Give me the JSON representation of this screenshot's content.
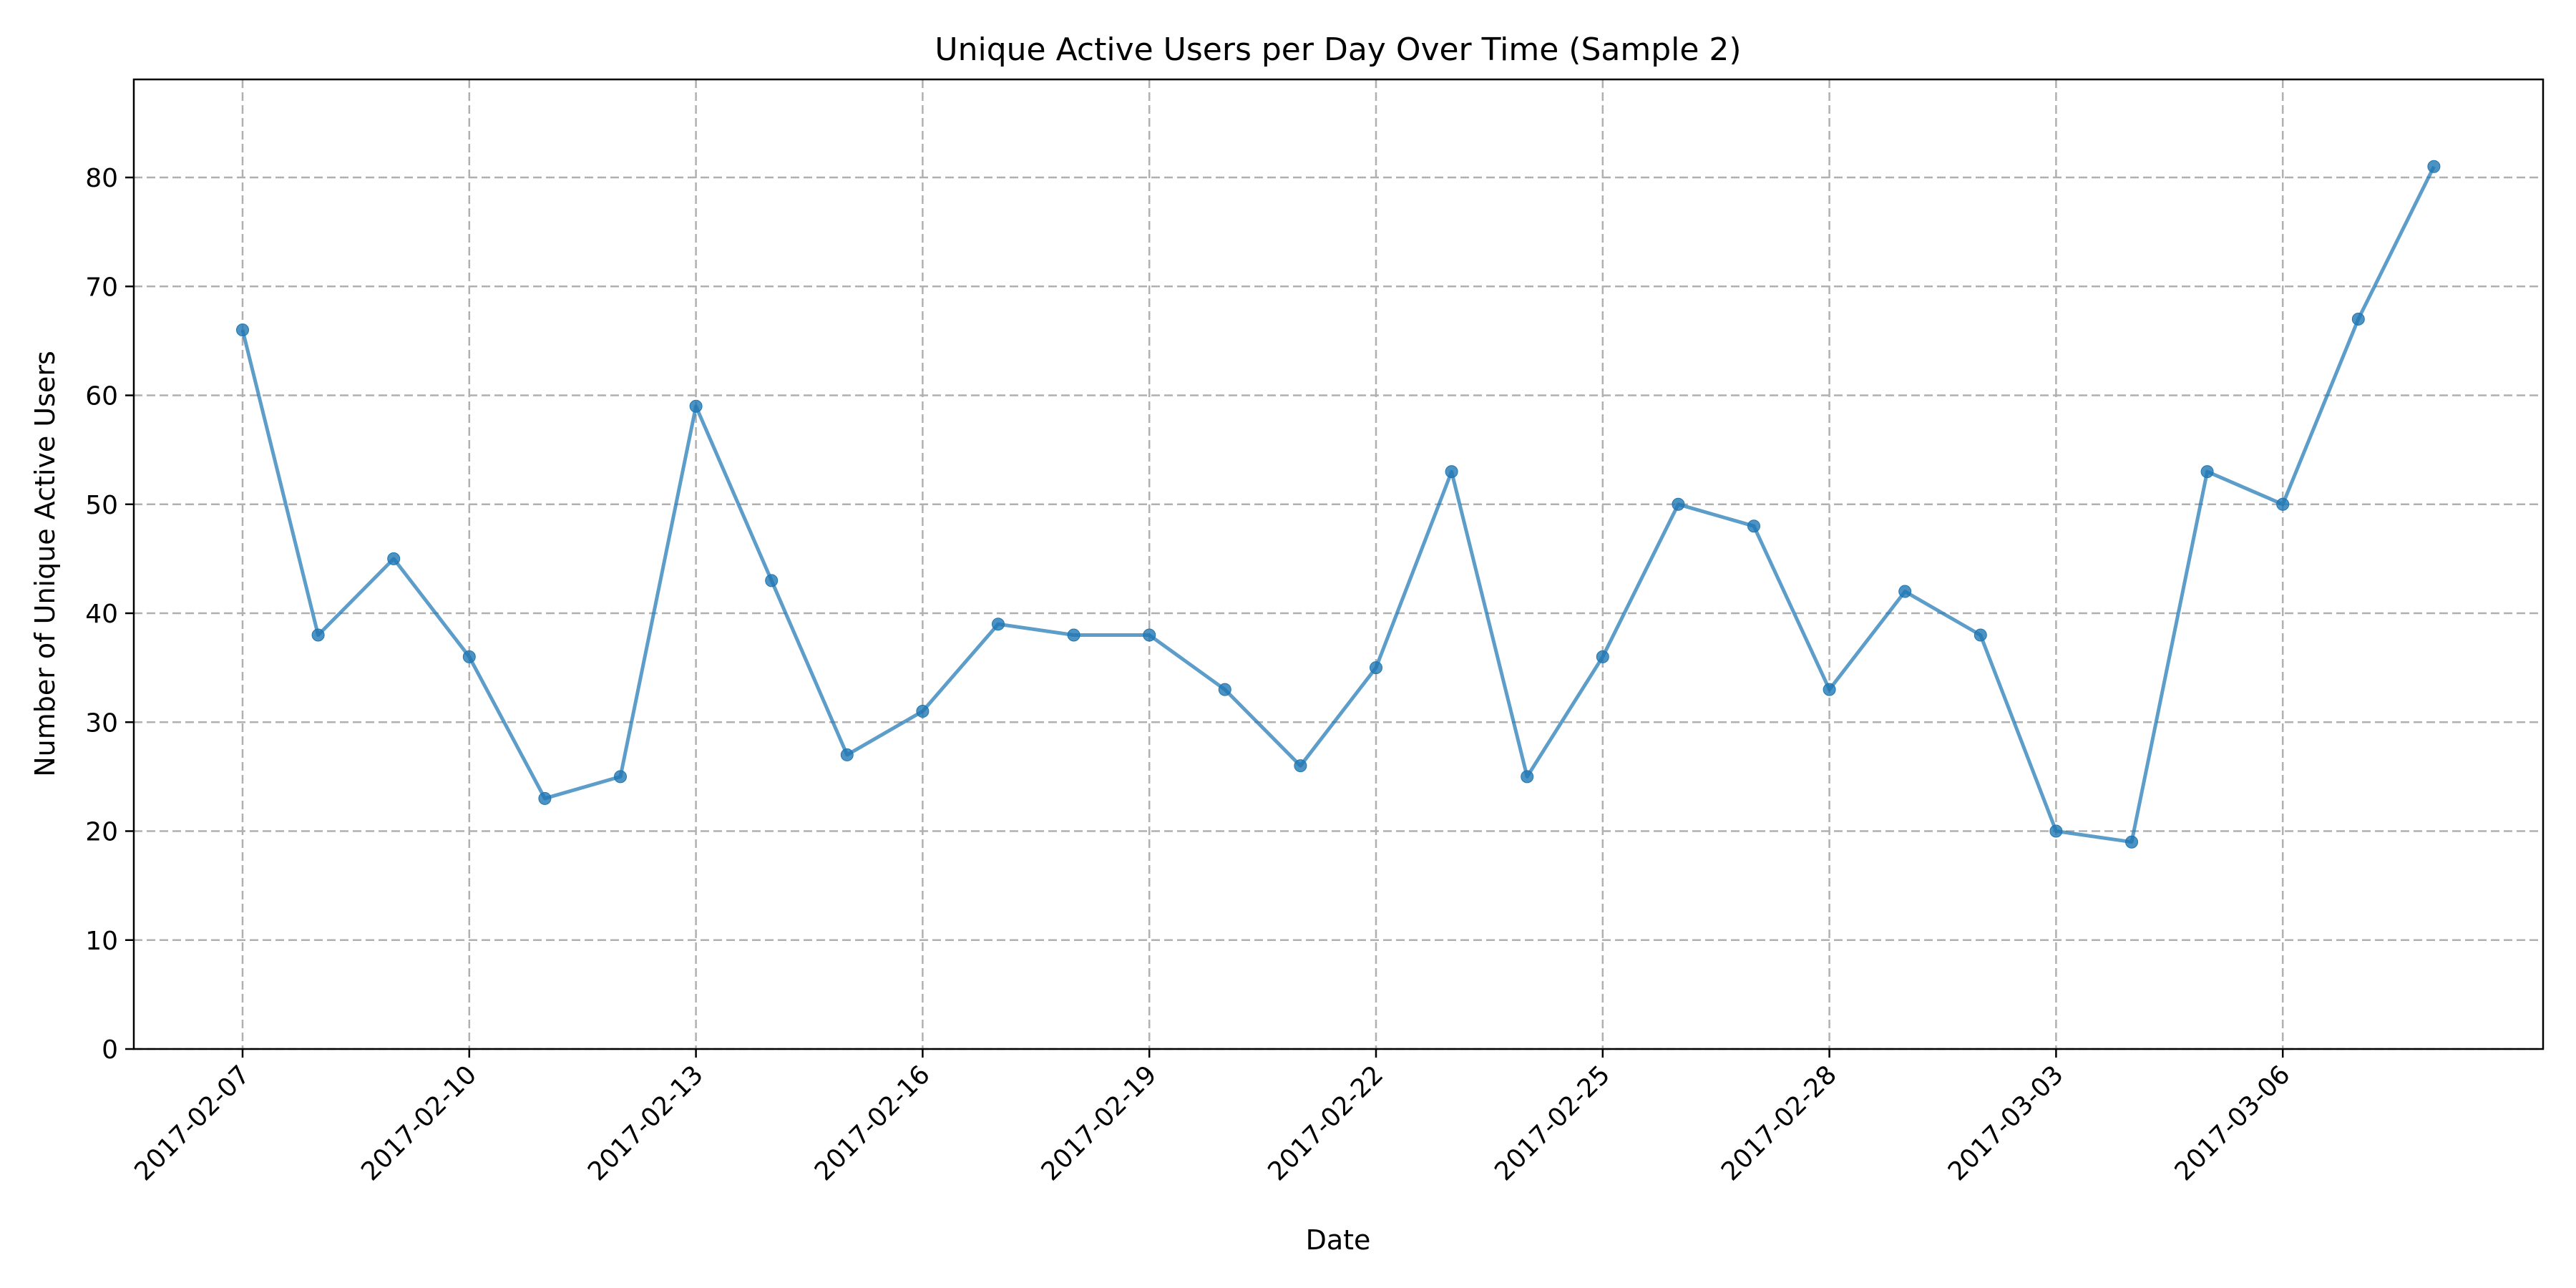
{
  "chart_data": {
    "type": "line",
    "title": "Unique Active Users per Day Over Time (Sample 2)",
    "xlabel": "Date",
    "ylabel": "Number of Unique Active Users",
    "x_ticks": [
      "2017-02-07",
      "2017-02-10",
      "2017-02-13",
      "2017-02-16",
      "2017-02-19",
      "2017-02-22",
      "2017-02-25",
      "2017-02-28",
      "2017-03-03",
      "2017-03-06"
    ],
    "y_ticks": [
      0,
      10,
      20,
      30,
      40,
      50,
      60,
      70,
      80
    ],
    "ylim": [
      0,
      89
    ],
    "grid": true,
    "line_color": "#1f77b4",
    "series": [
      {
        "name": "Unique Active Users",
        "x": [
          "2017-02-07",
          "2017-02-08",
          "2017-02-09",
          "2017-02-10",
          "2017-02-11",
          "2017-02-12",
          "2017-02-13",
          "2017-02-14",
          "2017-02-15",
          "2017-02-16",
          "2017-02-17",
          "2017-02-18",
          "2017-02-19",
          "2017-02-20",
          "2017-02-21",
          "2017-02-22",
          "2017-02-23",
          "2017-02-24",
          "2017-02-25",
          "2017-02-26",
          "2017-02-27",
          "2017-02-28",
          "2017-03-01",
          "2017-03-02",
          "2017-03-03",
          "2017-03-04",
          "2017-03-05",
          "2017-03-06",
          "2017-03-07",
          "2017-03-08"
        ],
        "values": [
          66,
          38,
          45,
          36,
          23,
          25,
          59,
          43,
          27,
          31,
          39,
          38,
          38,
          33,
          26,
          35,
          53,
          25,
          36,
          50,
          48,
          33,
          42,
          38,
          20,
          19,
          53,
          50,
          67,
          81
        ]
      }
    ]
  }
}
